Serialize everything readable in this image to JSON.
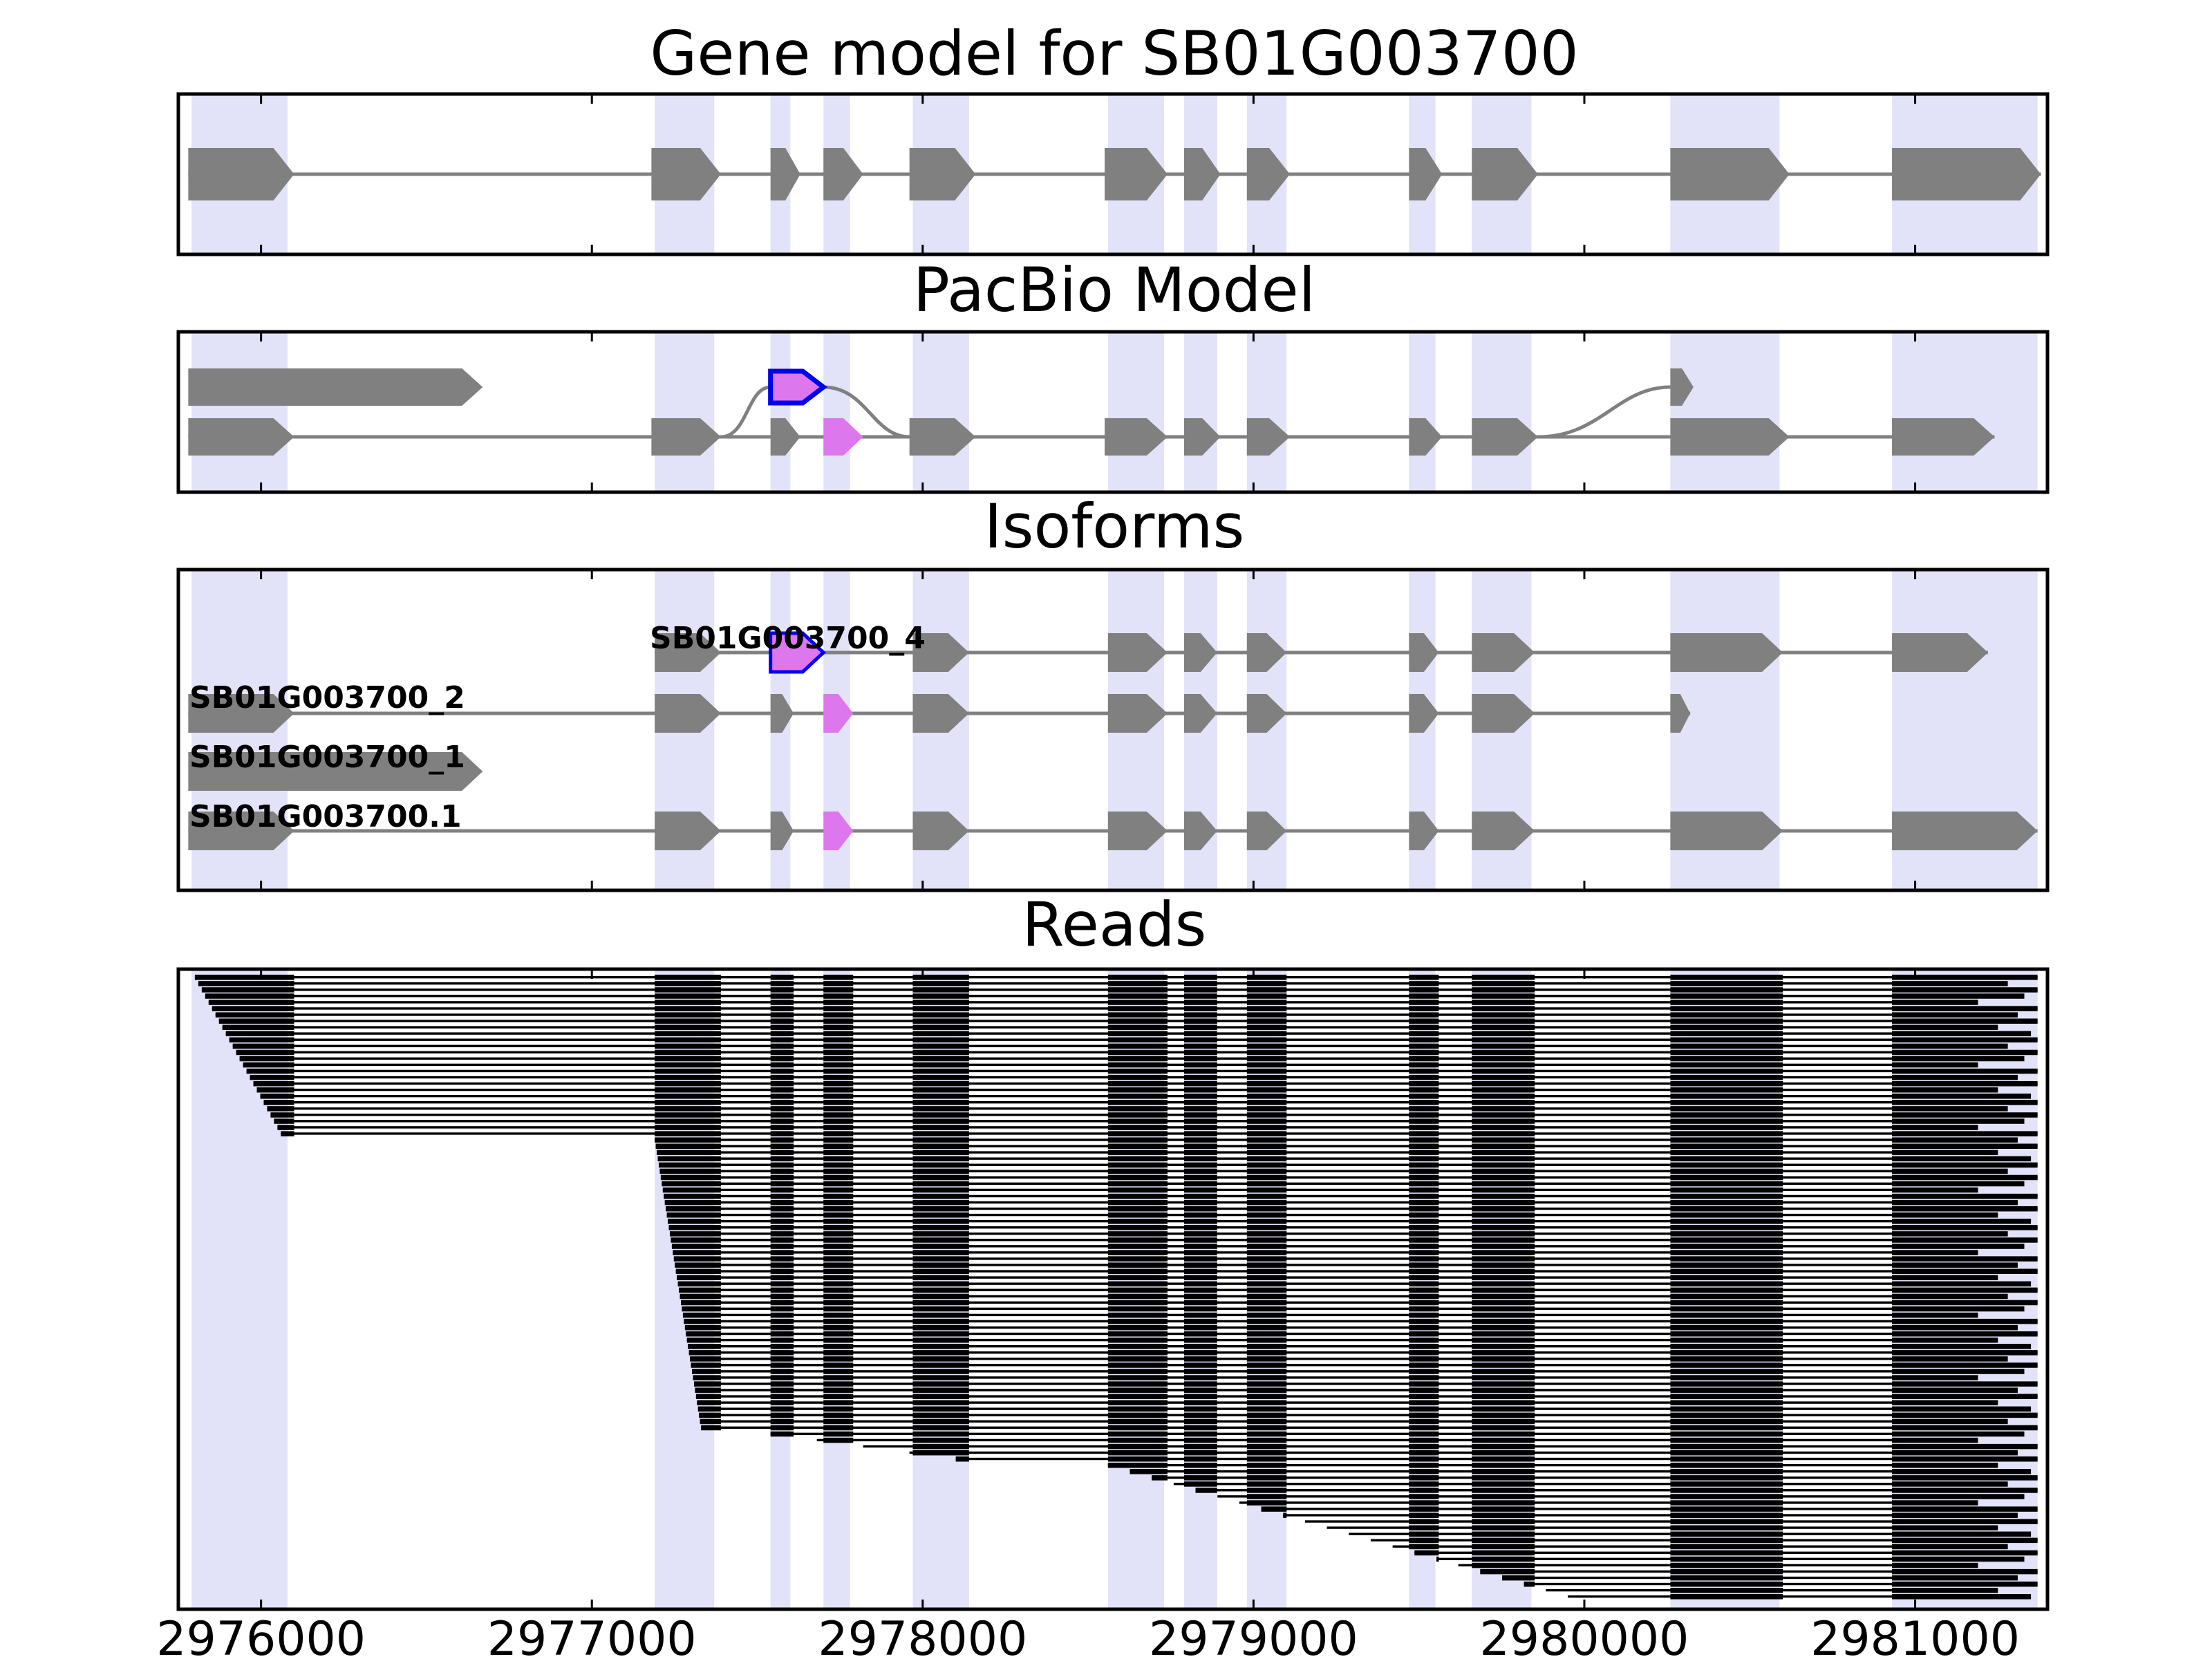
{
  "figure": {
    "panels": {
      "gene_model": {
        "title": "Gene model for SB01G003700"
      },
      "pacbio": {
        "title": "PacBio Model"
      },
      "isoforms": {
        "title": "Isoforms"
      },
      "reads": {
        "title": "Reads"
      }
    },
    "x_ticks": [
      "2976000",
      "2977000",
      "2978000",
      "2979000",
      "2980000",
      "2981000"
    ],
    "isoform_labels": [
      "SB01G003700_4",
      "SB01G003700_2",
      "SB01G003700_1",
      "SB01G003700.1"
    ]
  },
  "chart_data": {
    "type": "gene-structure",
    "title": "Gene model for SB01G003700",
    "x_range": [
      2975750,
      2981400
    ],
    "x_ticks": [
      2976000,
      2977000,
      2978000,
      2979000,
      2980000,
      2981000
    ],
    "highlight_regions": [
      [
        2975790,
        2976080
      ],
      [
        2977190,
        2977370
      ],
      [
        2977540,
        2977600
      ],
      [
        2977700,
        2977780
      ],
      [
        2977970,
        2978140
      ],
      [
        2978560,
        2978730
      ],
      [
        2978790,
        2978890
      ],
      [
        2978980,
        2979100
      ],
      [
        2979470,
        2979550
      ],
      [
        2979660,
        2979840
      ],
      [
        2980260,
        2980590
      ],
      [
        2980930,
        2981370
      ]
    ],
    "exon_colors": {
      "standard": "#808080",
      "alternative": "#dd77ee",
      "alt_outline": "#0000ee",
      "highlight": "#e2e2f8"
    },
    "gene_model": [
      [
        2975780,
        2976100
      ],
      [
        2977180,
        2977390
      ],
      [
        2977540,
        2977630
      ],
      [
        2977700,
        2977820
      ],
      [
        2977960,
        2978160
      ],
      [
        2978550,
        2978740
      ],
      [
        2978790,
        2978900
      ],
      [
        2978980,
        2979110
      ],
      [
        2979470,
        2979570
      ],
      [
        2979660,
        2979860
      ],
      [
        2980260,
        2980620
      ],
      [
        2980930,
        2981380
      ]
    ],
    "pacbio_model": [
      {
        "exons": [
          [
            2975780,
            2976670
          ]
        ],
        "junction_to": null
      },
      {
        "exons": [
          [
            2975780,
            2976100
          ],
          [
            2977180,
            2977390
          ],
          [
            2977540,
            2977630
          ],
          [
            2977700,
            2977820
          ],
          [
            2977960,
            2978160
          ],
          [
            2978550,
            2978740
          ],
          [
            2978790,
            2978900
          ],
          [
            2978980,
            2979110
          ],
          [
            2979470,
            2979570
          ],
          [
            2979660,
            2979860
          ],
          [
            2980260,
            2980620
          ],
          [
            2980930,
            2981240
          ]
        ]
      }
    ],
    "isoforms": [
      {
        "name": "SB01G003700_4",
        "exons": [
          [
            2977190,
            2977390
          ],
          [
            2977540,
            2977700
          ],
          [
            2977970,
            2978140
          ],
          [
            2978560,
            2978740
          ],
          [
            2978790,
            2978890
          ],
          [
            2978980,
            2979100
          ],
          [
            2979470,
            2979560
          ],
          [
            2979660,
            2979850
          ],
          [
            2980260,
            2980600
          ],
          [
            2980930,
            2981220
          ]
        ],
        "alt_exon": [
          2977540,
          2977700
        ]
      },
      {
        "name": "SB01G003700_2",
        "exons": [
          [
            2975780,
            2976100
          ],
          [
            2977190,
            2977390
          ],
          [
            2977540,
            2977610
          ],
          [
            2977700,
            2977790
          ],
          [
            2977970,
            2978140
          ],
          [
            2978560,
            2978740
          ],
          [
            2978790,
            2978890
          ],
          [
            2978980,
            2979100
          ],
          [
            2979470,
            2979560
          ],
          [
            2979660,
            2979850
          ],
          [
            2980260,
            2980320
          ]
        ],
        "alt_exon": [
          2977700,
          2977790
        ]
      },
      {
        "name": "SB01G003700_1",
        "exons": [
          [
            2975780,
            2976670
          ]
        ]
      },
      {
        "name": "SB01G003700.1",
        "exons": [
          [
            2975780,
            2976100
          ],
          [
            2977190,
            2977390
          ],
          [
            2977540,
            2977610
          ],
          [
            2977700,
            2977790
          ],
          [
            2977970,
            2978140
          ],
          [
            2978560,
            2978740
          ],
          [
            2978790,
            2978890
          ],
          [
            2978980,
            2979100
          ],
          [
            2979470,
            2979560
          ],
          [
            2979660,
            2979850
          ],
          [
            2980260,
            2980600
          ],
          [
            2980930,
            2981370
          ]
        ],
        "alt_exon": [
          2977700,
          2977790
        ]
      }
    ],
    "reads": {
      "count": 100,
      "exon_blocks": [
        [
          2975780,
          2976100
        ],
        [
          2977190,
          2977390
        ],
        [
          2977540,
          2977610
        ],
        [
          2977700,
          2977790
        ],
        [
          2977970,
          2978140
        ],
        [
          2978560,
          2978740
        ],
        [
          2978790,
          2978890
        ],
        [
          2978980,
          2979100
        ],
        [
          2979470,
          2979560
        ],
        [
          2979660,
          2979850
        ],
        [
          2980260,
          2980600
        ],
        [
          2980930,
          2981370
        ]
      ],
      "groups": [
        {
          "rows": 26,
          "start": [
            2975800,
            2976060
          ]
        },
        {
          "rows": 47,
          "start": [
            2977190,
            2977330
          ]
        },
        {
          "rows": 5,
          "start": [
            2977540,
            2978100
          ]
        },
        {
          "rows": 22,
          "start": [
            2978560,
            2979950
          ]
        }
      ]
    }
  }
}
